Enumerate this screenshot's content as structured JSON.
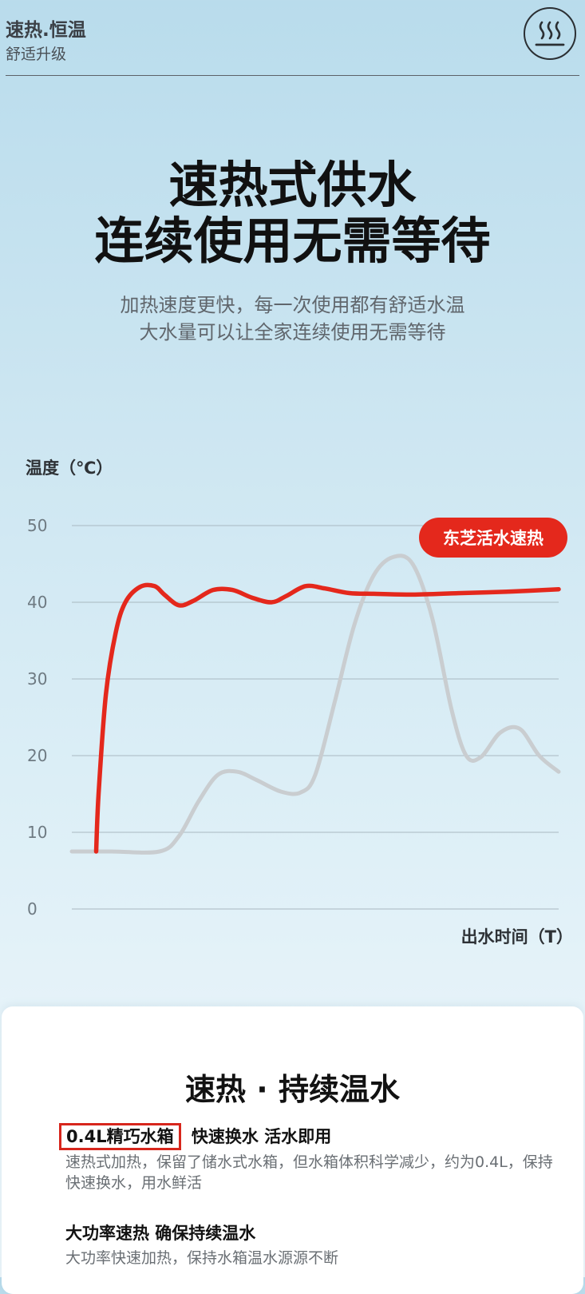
{
  "header": {
    "title": "速热.恒温",
    "subtitle": "舒适升级",
    "icon": "heat-waves-icon"
  },
  "hero": {
    "title_line1": "速热式供水",
    "title_line2": "连续使用无需等待",
    "desc_line1": "加热速度更快，每一次使用都有舒适水温",
    "desc_line2": "大水量可以让全家连续使用无需等待"
  },
  "chart_data": {
    "type": "line",
    "ylabel": "温度（℃）",
    "xlabel": "出水时间（T）",
    "yticks": [
      "0",
      "10",
      "20",
      "30",
      "40",
      "50"
    ],
    "ylim": [
      0,
      50
    ],
    "xlim": [
      0,
      100
    ],
    "grid": true,
    "series": [
      {
        "name": "东芝活水速热",
        "color": "#e4281c",
        "points": [
          [
            5,
            7.5
          ],
          [
            5.5,
            15
          ],
          [
            7,
            28
          ],
          [
            9,
            36
          ],
          [
            11,
            40
          ],
          [
            14,
            42
          ],
          [
            17,
            42.1
          ],
          [
            19,
            41
          ],
          [
            22,
            39.6
          ],
          [
            25,
            40.2
          ],
          [
            29,
            41.6
          ],
          [
            33,
            41.6
          ],
          [
            37,
            40.6
          ],
          [
            41,
            40
          ],
          [
            44,
            40.8
          ],
          [
            48,
            42.1
          ],
          [
            52,
            41.8
          ],
          [
            57,
            41.2
          ],
          [
            62,
            41.1
          ],
          [
            70,
            41
          ],
          [
            80,
            41.2
          ],
          [
            90,
            41.4
          ],
          [
            100,
            41.7
          ]
        ]
      },
      {
        "name": "",
        "color": "#c9cdd0",
        "points": [
          [
            0,
            7.5
          ],
          [
            8,
            7.5
          ],
          [
            18,
            7.5
          ],
          [
            22,
            9.5
          ],
          [
            26,
            14
          ],
          [
            30,
            17.5
          ],
          [
            34,
            17.9
          ],
          [
            38,
            16.8
          ],
          [
            43,
            15.3
          ],
          [
            47,
            15.2
          ],
          [
            50,
            17.5
          ],
          [
            54,
            27
          ],
          [
            58,
            37
          ],
          [
            62,
            43.5
          ],
          [
            66,
            45.9
          ],
          [
            70,
            45
          ],
          [
            74,
            38
          ],
          [
            78,
            26
          ],
          [
            81,
            20
          ],
          [
            84,
            19.8
          ],
          [
            88,
            23
          ],
          [
            92,
            23.5
          ],
          [
            96,
            20
          ],
          [
            100,
            17.9
          ]
        ]
      }
    ]
  },
  "card": {
    "title": "速热 · 持续温水",
    "feature1_highlight": "0.4L精巧水箱",
    "feature1_rest": "快速换水  活水即用",
    "feature1_desc": "速热式加热，保留了储水式水箱，但水箱体积科学减少，约为0.4L，保持快速换水，用水鲜活",
    "feature2_title": "大功率速热  确保持续温水",
    "feature2_desc": "大功率快速加热，保持水箱温水源源不断"
  }
}
